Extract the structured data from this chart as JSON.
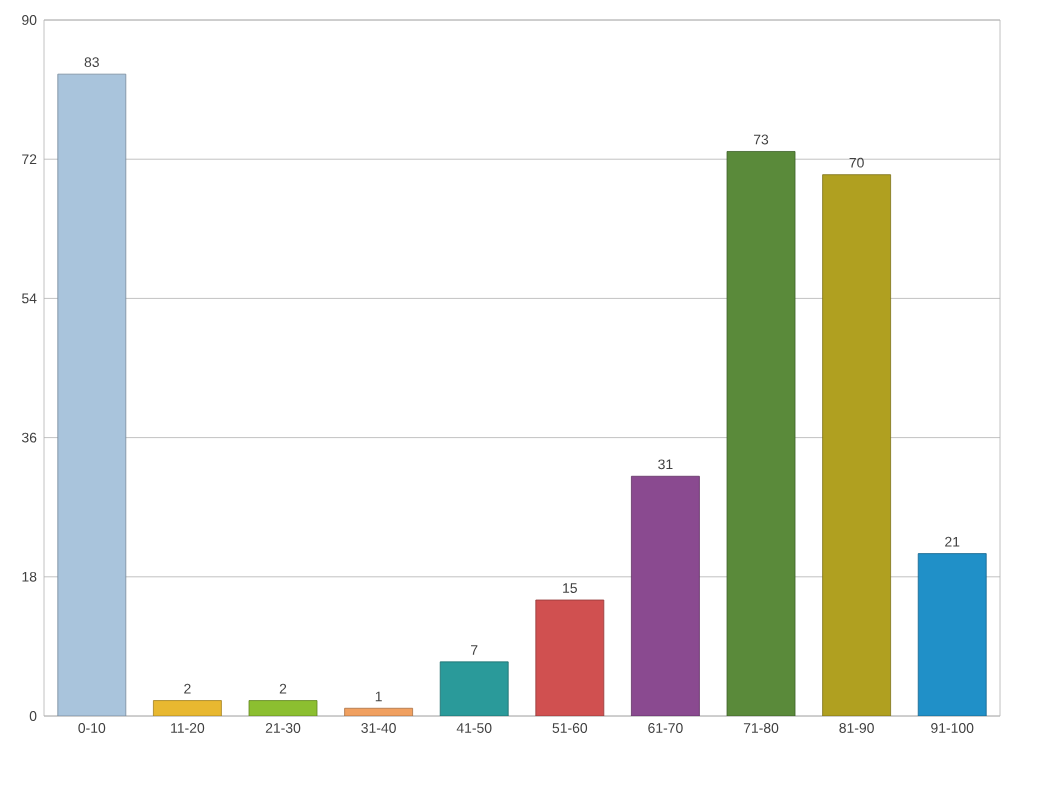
{
  "chart_data": {
    "type": "bar",
    "categories": [
      "0-10",
      "11-20",
      "21-30",
      "31-40",
      "41-50",
      "51-60",
      "61-70",
      "71-80",
      "81-90",
      "91-100"
    ],
    "values": [
      83,
      2,
      2,
      1,
      7,
      15,
      31,
      73,
      70,
      21
    ],
    "colors": [
      "#a9c4dc",
      "#e8b830",
      "#8cbf30",
      "#f0a060",
      "#2a9a9a",
      "#d05050",
      "#8a4a90",
      "#5a8a3a",
      "#b0a020",
      "#2090c8"
    ],
    "ylim": [
      0,
      90
    ],
    "yticks": [
      0,
      18,
      36,
      54,
      72,
      90
    ],
    "grid": "y",
    "data_labels": true
  }
}
